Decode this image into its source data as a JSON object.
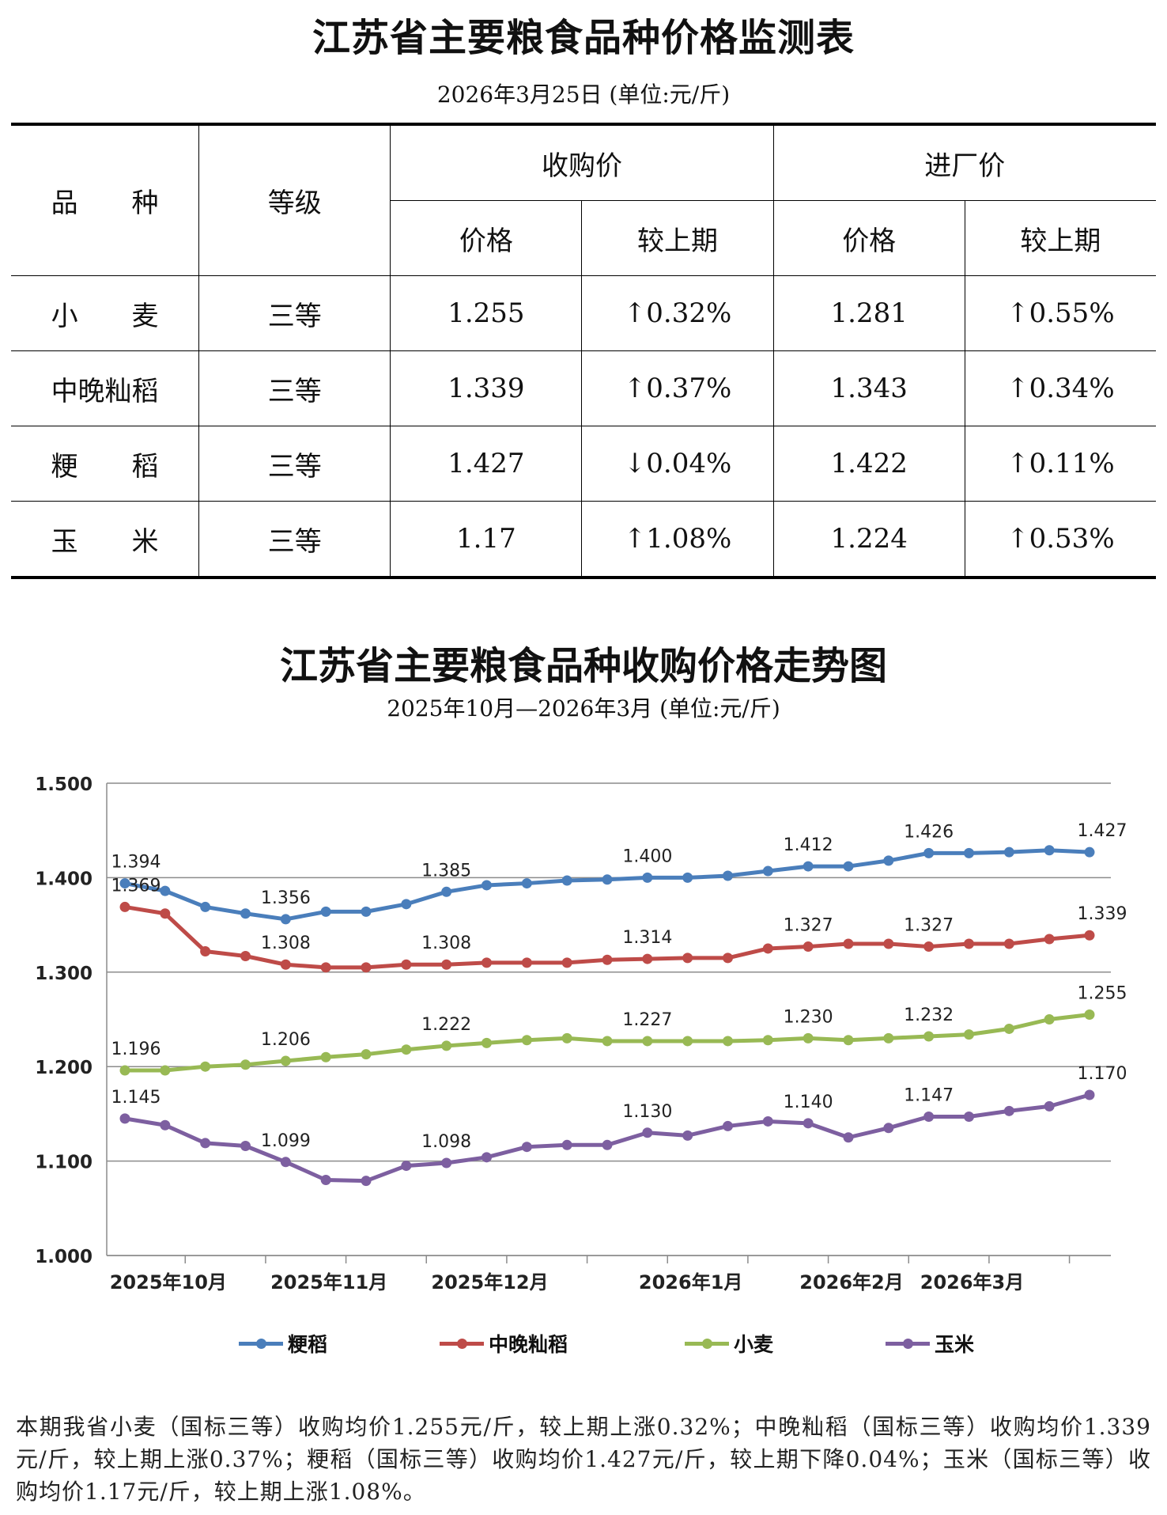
{
  "header": {
    "title": "江苏省主要粮食品种价格监测表",
    "subtitle": "2026年3月25日  (单位:元/斤)"
  },
  "table": {
    "col_variety": "品　　种",
    "col_grade": "等级",
    "group_purchase": "收购价",
    "group_factory": "进厂价",
    "col_price": "价格",
    "col_change": "较上期",
    "rows": [
      {
        "variety": "小　　麦",
        "grade": "三等",
        "purchase_price": "1.255",
        "purchase_change": "↑0.32%",
        "factory_price": "1.281",
        "factory_change": "↑0.55%"
      },
      {
        "variety": "中晚籼稻",
        "grade": "三等",
        "purchase_price": "1.339",
        "purchase_change": "↑0.37%",
        "factory_price": "1.343",
        "factory_change": "↑0.34%"
      },
      {
        "variety": "粳　　稻",
        "grade": "三等",
        "purchase_price": "1.427",
        "purchase_change": "↓0.04%",
        "factory_price": "1.422",
        "factory_change": "↑0.11%"
      },
      {
        "variety": "玉　　米",
        "grade": "三等",
        "purchase_price": "1.17",
        "purchase_change": "↑1.08%",
        "factory_price": "1.224",
        "factory_change": "↑0.53%"
      }
    ]
  },
  "chart_header": {
    "title": "江苏省主要粮食品种收购价格走势图",
    "subtitle": "2025年10月—2026年3月  (单位:元/斤)"
  },
  "chart_data": {
    "type": "line",
    "title": "江苏省主要粮食品种收购价格走势图",
    "ylim": [
      1.0,
      1.5
    ],
    "yticks": [
      "1.000",
      "1.100",
      "1.200",
      "1.300",
      "1.400",
      "1.500"
    ],
    "x": [
      0,
      1,
      2,
      3,
      4,
      5,
      6,
      7,
      8,
      9,
      10,
      11,
      12,
      13,
      14,
      15,
      16,
      17,
      18,
      19,
      20,
      21,
      22,
      23,
      24
    ],
    "month_labels": [
      {
        "label": "2025年10月",
        "x": 1
      },
      {
        "label": "2025年11月",
        "x": 5
      },
      {
        "label": "2025年12月",
        "x": 9
      },
      {
        "label": "2026年1月",
        "x": 14
      },
      {
        "label": "2026年2月",
        "x": 18
      },
      {
        "label": "2026年3月",
        "x": 21
      }
    ],
    "series": [
      {
        "name": "粳稻",
        "color": "#4a7ebb",
        "values": [
          1.394,
          1.386,
          1.369,
          1.362,
          1.356,
          1.364,
          1.364,
          1.372,
          1.385,
          1.392,
          1.394,
          1.397,
          1.398,
          1.4,
          1.4,
          1.402,
          1.407,
          1.412,
          1.412,
          1.418,
          1.426,
          1.426,
          1.427,
          1.429,
          1.427
        ],
        "labels": [
          {
            "i": 0,
            "text": "1.394"
          },
          {
            "i": 4,
            "text": "1.356"
          },
          {
            "i": 8,
            "text": "1.385"
          },
          {
            "i": 13,
            "text": "1.400"
          },
          {
            "i": 17,
            "text": "1.412"
          },
          {
            "i": 20,
            "text": "1.426"
          },
          {
            "i": 24,
            "text": "1.427"
          }
        ]
      },
      {
        "name": "中晚籼稻",
        "color": "#be4b48",
        "values": [
          1.369,
          1.362,
          1.322,
          1.317,
          1.308,
          1.305,
          1.305,
          1.308,
          1.308,
          1.31,
          1.31,
          1.31,
          1.313,
          1.314,
          1.315,
          1.315,
          1.325,
          1.327,
          1.33,
          1.33,
          1.327,
          1.33,
          1.33,
          1.335,
          1.339
        ],
        "labels": [
          {
            "i": 0,
            "text": "1.369"
          },
          {
            "i": 4,
            "text": "1.308"
          },
          {
            "i": 8,
            "text": "1.308"
          },
          {
            "i": 13,
            "text": "1.314"
          },
          {
            "i": 17,
            "text": "1.327"
          },
          {
            "i": 20,
            "text": "1.327"
          },
          {
            "i": 24,
            "text": "1.339"
          }
        ]
      },
      {
        "name": "小麦",
        "color": "#98b954",
        "values": [
          1.196,
          1.196,
          1.2,
          1.202,
          1.206,
          1.21,
          1.213,
          1.218,
          1.222,
          1.225,
          1.228,
          1.23,
          1.227,
          1.227,
          1.227,
          1.227,
          1.228,
          1.23,
          1.228,
          1.23,
          1.232,
          1.234,
          1.24,
          1.25,
          1.255
        ],
        "labels": [
          {
            "i": 0,
            "text": "1.196"
          },
          {
            "i": 4,
            "text": "1.206"
          },
          {
            "i": 8,
            "text": "1.222"
          },
          {
            "i": 13,
            "text": "1.227"
          },
          {
            "i": 17,
            "text": "1.230"
          },
          {
            "i": 20,
            "text": "1.232"
          },
          {
            "i": 24,
            "text": "1.255"
          }
        ]
      },
      {
        "name": "玉米",
        "color": "#7d5fa0",
        "values": [
          1.145,
          1.138,
          1.119,
          1.116,
          1.099,
          1.08,
          1.079,
          1.095,
          1.098,
          1.104,
          1.115,
          1.117,
          1.117,
          1.13,
          1.127,
          1.137,
          1.142,
          1.14,
          1.125,
          1.135,
          1.147,
          1.147,
          1.153,
          1.158,
          1.17
        ],
        "labels": [
          {
            "i": 0,
            "text": "1.145"
          },
          {
            "i": 4,
            "text": "1.099"
          },
          {
            "i": 8,
            "text": "1.098"
          },
          {
            "i": 13,
            "text": "1.130"
          },
          {
            "i": 17,
            "text": "1.140"
          },
          {
            "i": 20,
            "text": "1.147"
          },
          {
            "i": 24,
            "text": "1.170"
          }
        ]
      }
    ],
    "legend": [
      "粳稻",
      "中晚籼稻",
      "小麦",
      "玉米"
    ]
  },
  "summary": "本期我省小麦（国标三等）收购均价1.255元/斤，较上期上涨0.32%；中晚籼稻（国标三等）收购均价1.339元/斤，较上期上涨0.37%；粳稻（国标三等）收购均价1.427元/斤，较上期下降0.04%；玉米（国标三等）收购均价1.17元/斤，较上期上涨1.08%。"
}
